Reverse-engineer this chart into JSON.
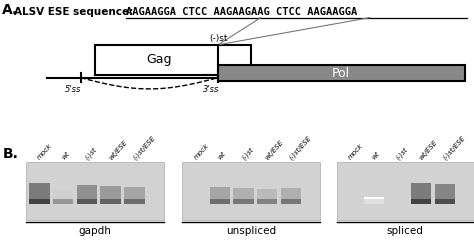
{
  "panel_a_label": "A.",
  "panel_b_label": "B.",
  "ese_sequence_label": "ALSV ESE sequence:",
  "ese_sequence": "AAGAAGGA CTCC AAGAAGAAG CTCC AAGAAGGA",
  "minus_st_label": "(-)st",
  "gag_label": "Gag",
  "pol_label": "Pol",
  "ss5_label": "5'ss",
  "ss3_label": "3'ss",
  "gel_groups": [
    "gapdh",
    "unspliced",
    "spliced"
  ],
  "lane_labels": [
    "mock",
    "wt",
    "(-)st",
    "wt/ESE",
    "(-)st/ESE"
  ],
  "bg_color": "#ffffff",
  "gapdh_intensities": [
    0.9,
    0.5,
    0.8,
    0.75,
    0.7
  ],
  "unspliced_intensities": [
    0.0,
    0.7,
    0.65,
    0.6,
    0.65
  ],
  "spliced_intensities": [
    0.0,
    0.15,
    0.0,
    0.9,
    0.85
  ]
}
